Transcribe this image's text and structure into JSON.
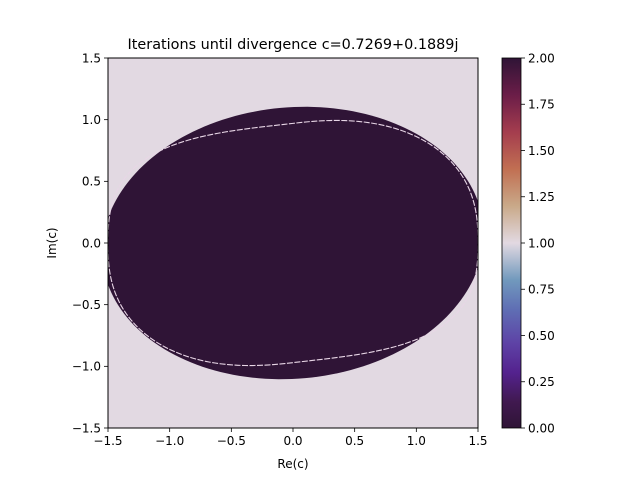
{
  "chart_data": {
    "type": "heatmap",
    "title": "Iterations until divergence c=0.7269+0.1889j",
    "xlabel": "Re(c)",
    "ylabel": "Im(c)",
    "xlim": [
      -1.5,
      1.5
    ],
    "ylim": [
      -1.5,
      1.5
    ],
    "x_ticks": [
      -1.5,
      -1.0,
      -0.5,
      0.0,
      0.5,
      1.0,
      1.5
    ],
    "y_ticks": [
      -1.5,
      -1.0,
      -0.5,
      0.0,
      0.5,
      1.0,
      1.5
    ],
    "x_tick_labels": [
      "−1.5",
      "−1.0",
      "−0.5",
      "0.0",
      "0.5",
      "1.0",
      "1.5"
    ],
    "y_tick_labels": [
      "−1.5",
      "−1.0",
      "−0.5",
      "0.0",
      "0.5",
      "1.0",
      "1.5"
    ],
    "grid": false,
    "colormap": "twilight_shifted",
    "colorbar": {
      "min": 0.0,
      "max": 2.0,
      "ticks": [
        0.0,
        0.25,
        0.5,
        0.75,
        1.0,
        1.25,
        1.5,
        1.75,
        2.0
      ],
      "tick_labels": [
        "0.00",
        "0.25",
        "0.50",
        "0.75",
        "1.00",
        "1.25",
        "1.50",
        "1.75",
        "2.00"
      ]
    },
    "regions": [
      {
        "value": 1.0,
        "extent": "background, outside the ellipse",
        "color": "#e2d9e2"
      },
      {
        "value": 2.0,
        "extent": "inside the ellipse of half-widths about 1.55 (Re) and 1.1 (Im), tilted slightly",
        "color": "#2f1436"
      },
      {
        "value": 2.0,
        "extent": "thin boundary curve inside the ellipse, reaching Im about ±0.97 and Re about ±1.47",
        "color": "#e8d6e6"
      }
    ]
  }
}
